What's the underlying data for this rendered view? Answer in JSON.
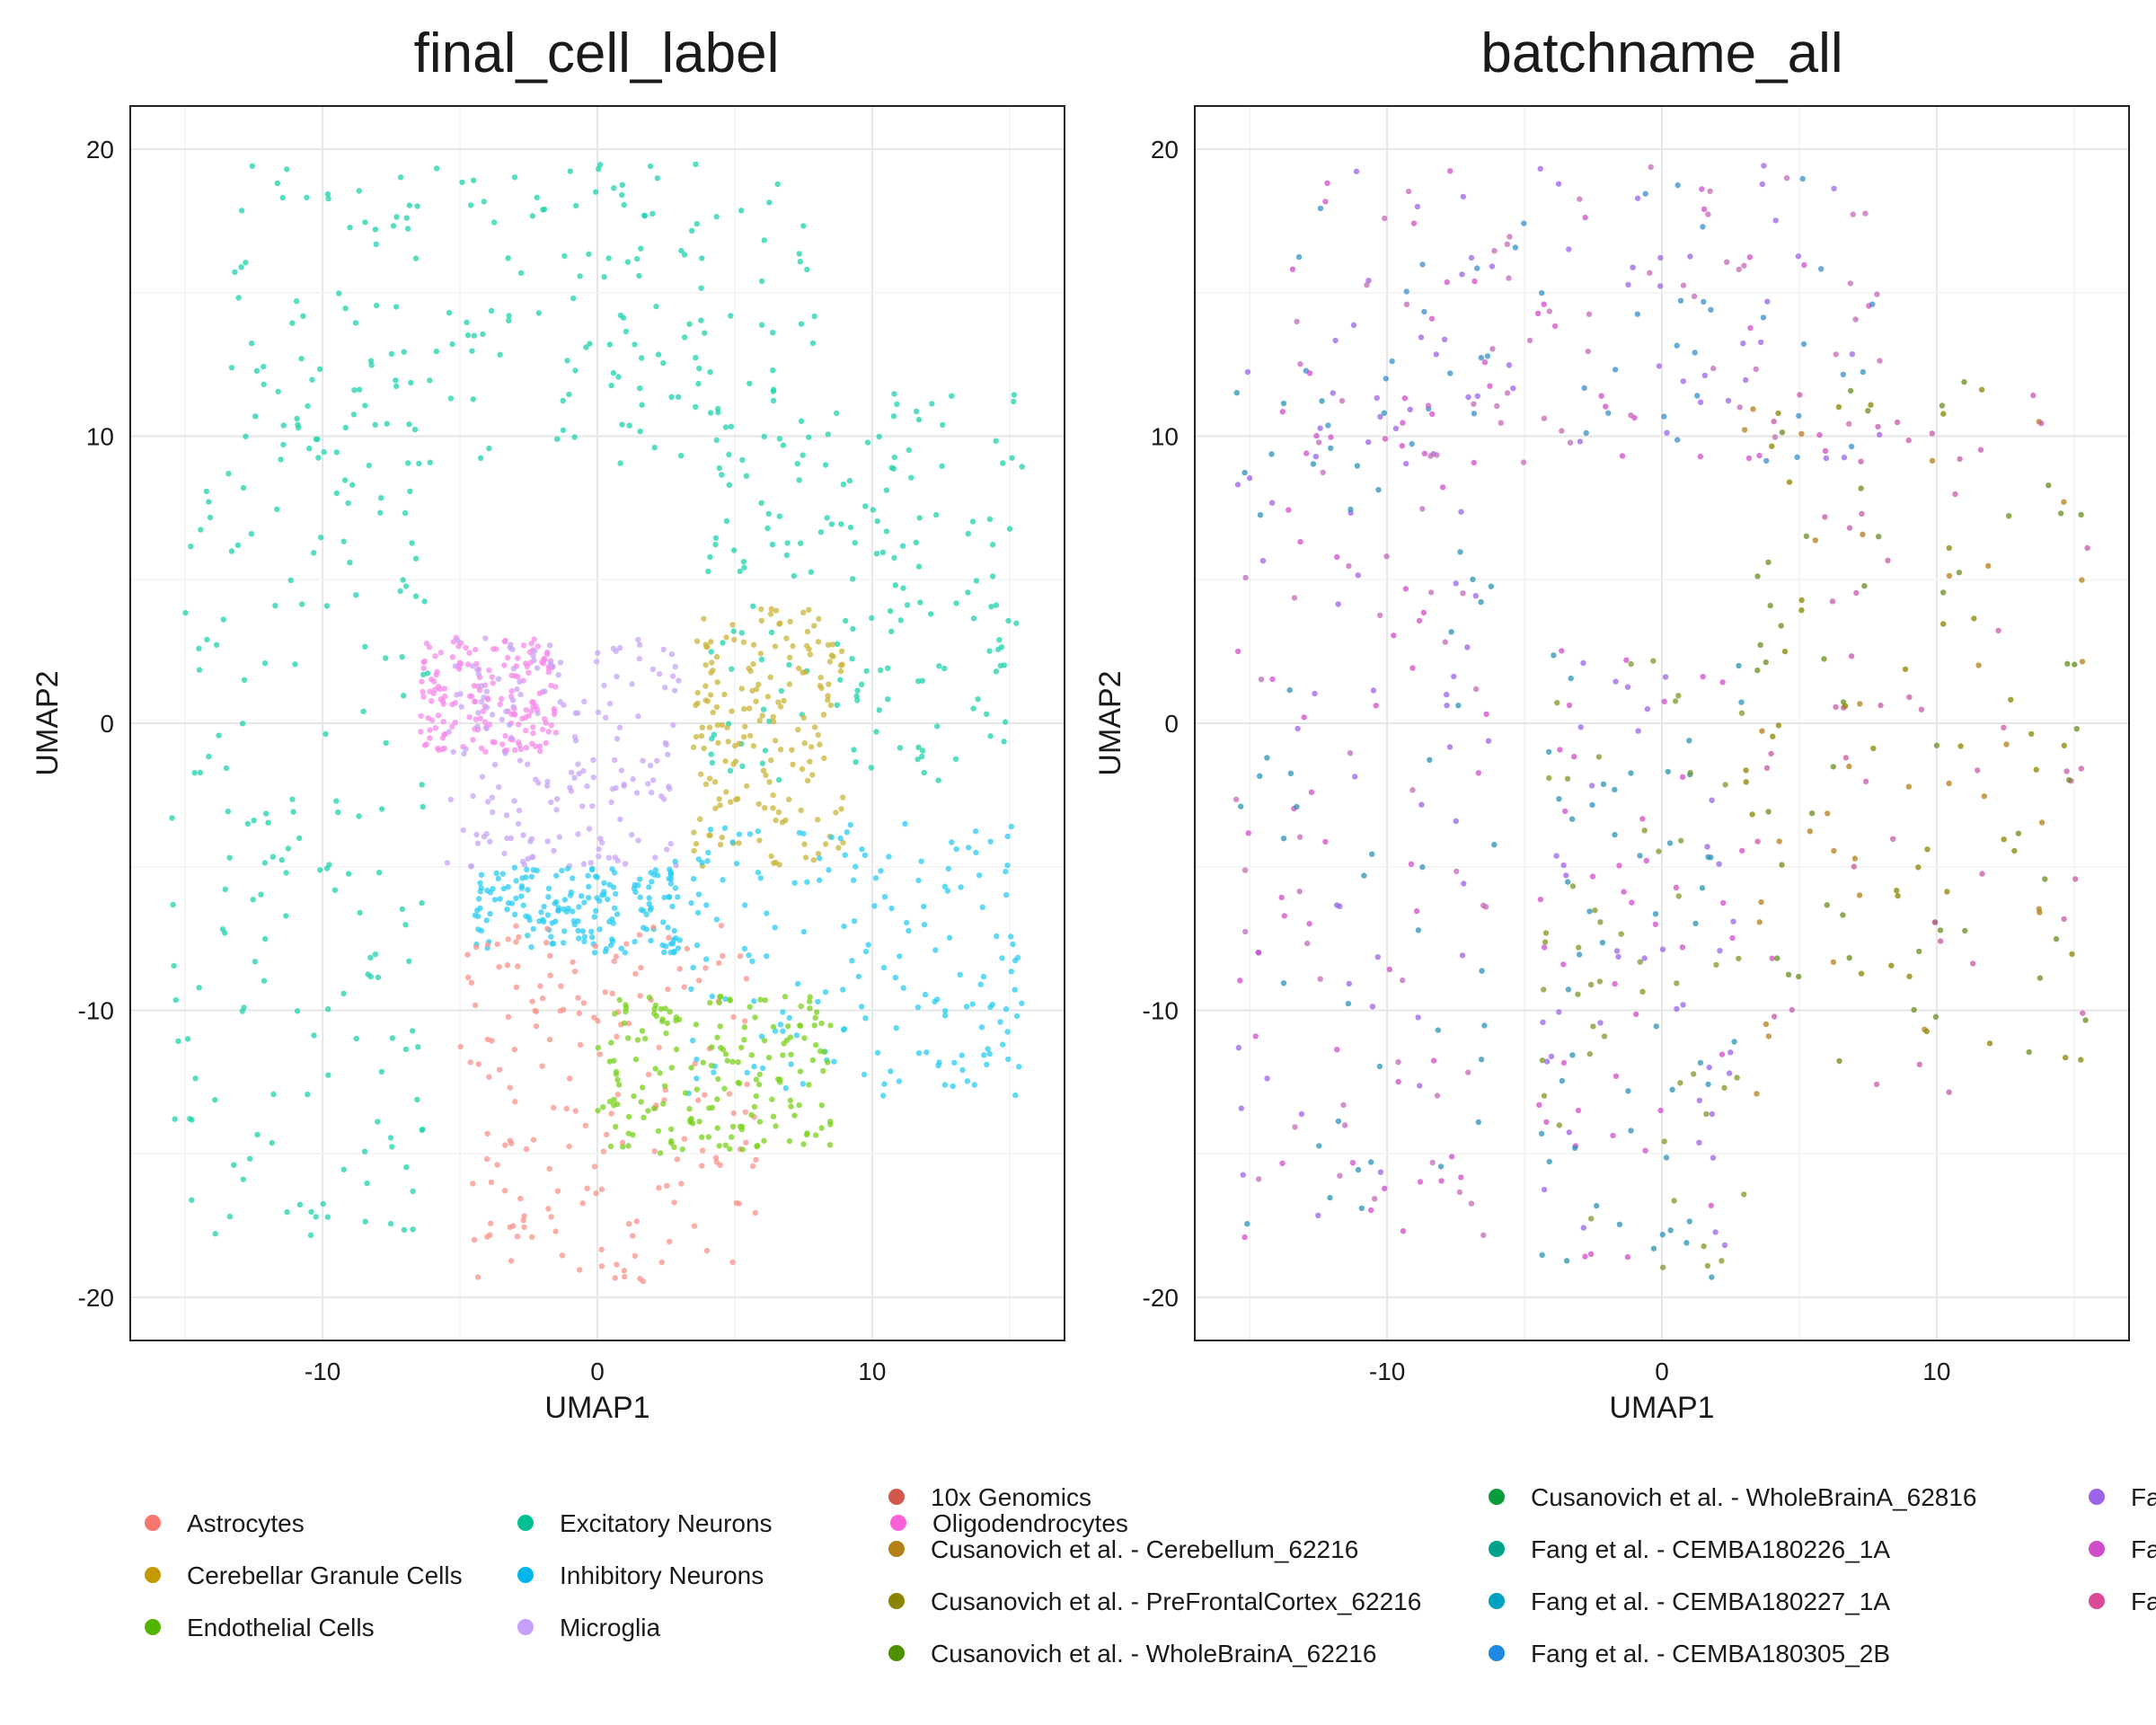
{
  "chart_data": [
    {
      "type": "scatter",
      "title": "final_cell_label",
      "xlabel": "UMAP1",
      "ylabel": "UMAP2",
      "xlim": [
        -17,
        17
      ],
      "ylim": [
        -21.5,
        21.5
      ],
      "xticks": [
        -10,
        0,
        10
      ],
      "yticks": [
        -20,
        -10,
        0,
        10,
        20
      ],
      "grid": true,
      "legend_position": "bottom",
      "legend_entries": [
        {
          "label": "Astrocytes",
          "color": "#F8766D"
        },
        {
          "label": "Cerebellar Granule Cells",
          "color": "#C49A00"
        },
        {
          "label": "Endothelial Cells",
          "color": "#53B400"
        },
        {
          "label": "Excitatory Neurons",
          "color": "#00C094"
        },
        {
          "label": "Inhibitory Neurons",
          "color": "#00B6EB"
        },
        {
          "label": "Microglia",
          "color": "#C4A0FF"
        },
        {
          "label": "Oligodendrocytes",
          "color": "#FB61D7"
        }
      ],
      "regions": [
        {
          "label": "Excitatory Neurons",
          "color": "#1FD3AE",
          "bounds": [
            -13.5,
            8,
            9,
            19.5
          ]
        },
        {
          "label": "Excitatory Neurons",
          "color": "#1FD3AE",
          "bounds": [
            -15.5,
            -6,
            -18,
            13
          ]
        },
        {
          "label": "Excitatory Neurons",
          "color": "#1FD3AE",
          "bounds": [
            4,
            15.5,
            -2,
            12
          ]
        },
        {
          "label": "Oligodendrocytes",
          "color": "#F78AE8",
          "bounds": [
            -6.5,
            -1.5,
            -1,
            3
          ]
        },
        {
          "label": "Microglia",
          "color": "#C7A6F5",
          "bounds": [
            -5.5,
            3,
            -5,
            3
          ]
        },
        {
          "label": "Cerebellar Granule Cells",
          "color": "#C9B53A",
          "bounds": [
            3.5,
            9,
            -5,
            4
          ]
        },
        {
          "label": "Inhibitory Neurons",
          "color": "#29CCF2",
          "bounds": [
            2.5,
            15.5,
            -13,
            -3.5
          ]
        },
        {
          "label": "Inhibitory Neurons",
          "color": "#29CCF2",
          "bounds": [
            -4.5,
            3,
            -8,
            -5
          ]
        },
        {
          "label": "Astrocytes",
          "color": "#F99189",
          "bounds": [
            -5,
            6,
            -19.5,
            -7
          ]
        },
        {
          "label": "Endothelial Cells",
          "color": "#78D21C",
          "bounds": [
            0,
            8.5,
            -15,
            -9.5
          ]
        }
      ]
    },
    {
      "type": "scatter",
      "title": "batchname_all",
      "xlabel": "UMAP1",
      "ylabel": "UMAP2",
      "xlim": [
        -17,
        17
      ],
      "ylim": [
        -21.5,
        21.5
      ],
      "xticks": [
        -10,
        0,
        10
      ],
      "yticks": [
        -20,
        -10,
        0,
        10,
        20
      ],
      "grid": true,
      "legend_position": "bottom",
      "legend_entries": [
        {
          "label": "10x Genomics",
          "color": "#D1584B"
        },
        {
          "label": "Cusanovich et al. - Cerebellum_62216",
          "color": "#B37F17"
        },
        {
          "label": "Cusanovich et al. - PreFrontalCortex_62216",
          "color": "#8A8400"
        },
        {
          "label": "Cusanovich et al. - WholeBrainA_62216",
          "color": "#4E9000"
        },
        {
          "label": "Cusanovich et al. - WholeBrainA_62816",
          "color": "#0A9C3C"
        },
        {
          "label": "Fang et al. - CEMBA180226_1A",
          "color": "#00A38A"
        },
        {
          "label": "Fang et al. - CEMBA180227_1A",
          "color": "#00A1BF"
        },
        {
          "label": "Fang et al. - CEMBA180305_2B",
          "color": "#1F88E0"
        },
        {
          "label": "Fang e",
          "color": "#9B63E5"
        },
        {
          "label": "Fang e",
          "color": "#D14CC8"
        },
        {
          "label": "Fang e",
          "color": "#D94B95"
        }
      ],
      "region_palettes": [
        {
          "bounds": [
            -13.5,
            8,
            9,
            19.5
          ],
          "colors": [
            "#9B63E5",
            "#D14CC8",
            "#3A8FC9",
            "#C46AB7"
          ]
        },
        {
          "bounds": [
            -15.5,
            -6,
            -18,
            13
          ],
          "colors": [
            "#9B63E5",
            "#D14CC8",
            "#2C93B5",
            "#C46AB7"
          ]
        },
        {
          "bounds": [
            -4.5,
            3,
            -19.5,
            3
          ],
          "colors": [
            "#9B63E5",
            "#D14CC8",
            "#2C93B5",
            "#7E9A2B"
          ]
        },
        {
          "bounds": [
            3,
            15.5,
            -13,
            12
          ],
          "colors": [
            "#6A8D1E",
            "#8A8400",
            "#B37F17",
            "#C65AA8"
          ]
        }
      ]
    }
  ]
}
